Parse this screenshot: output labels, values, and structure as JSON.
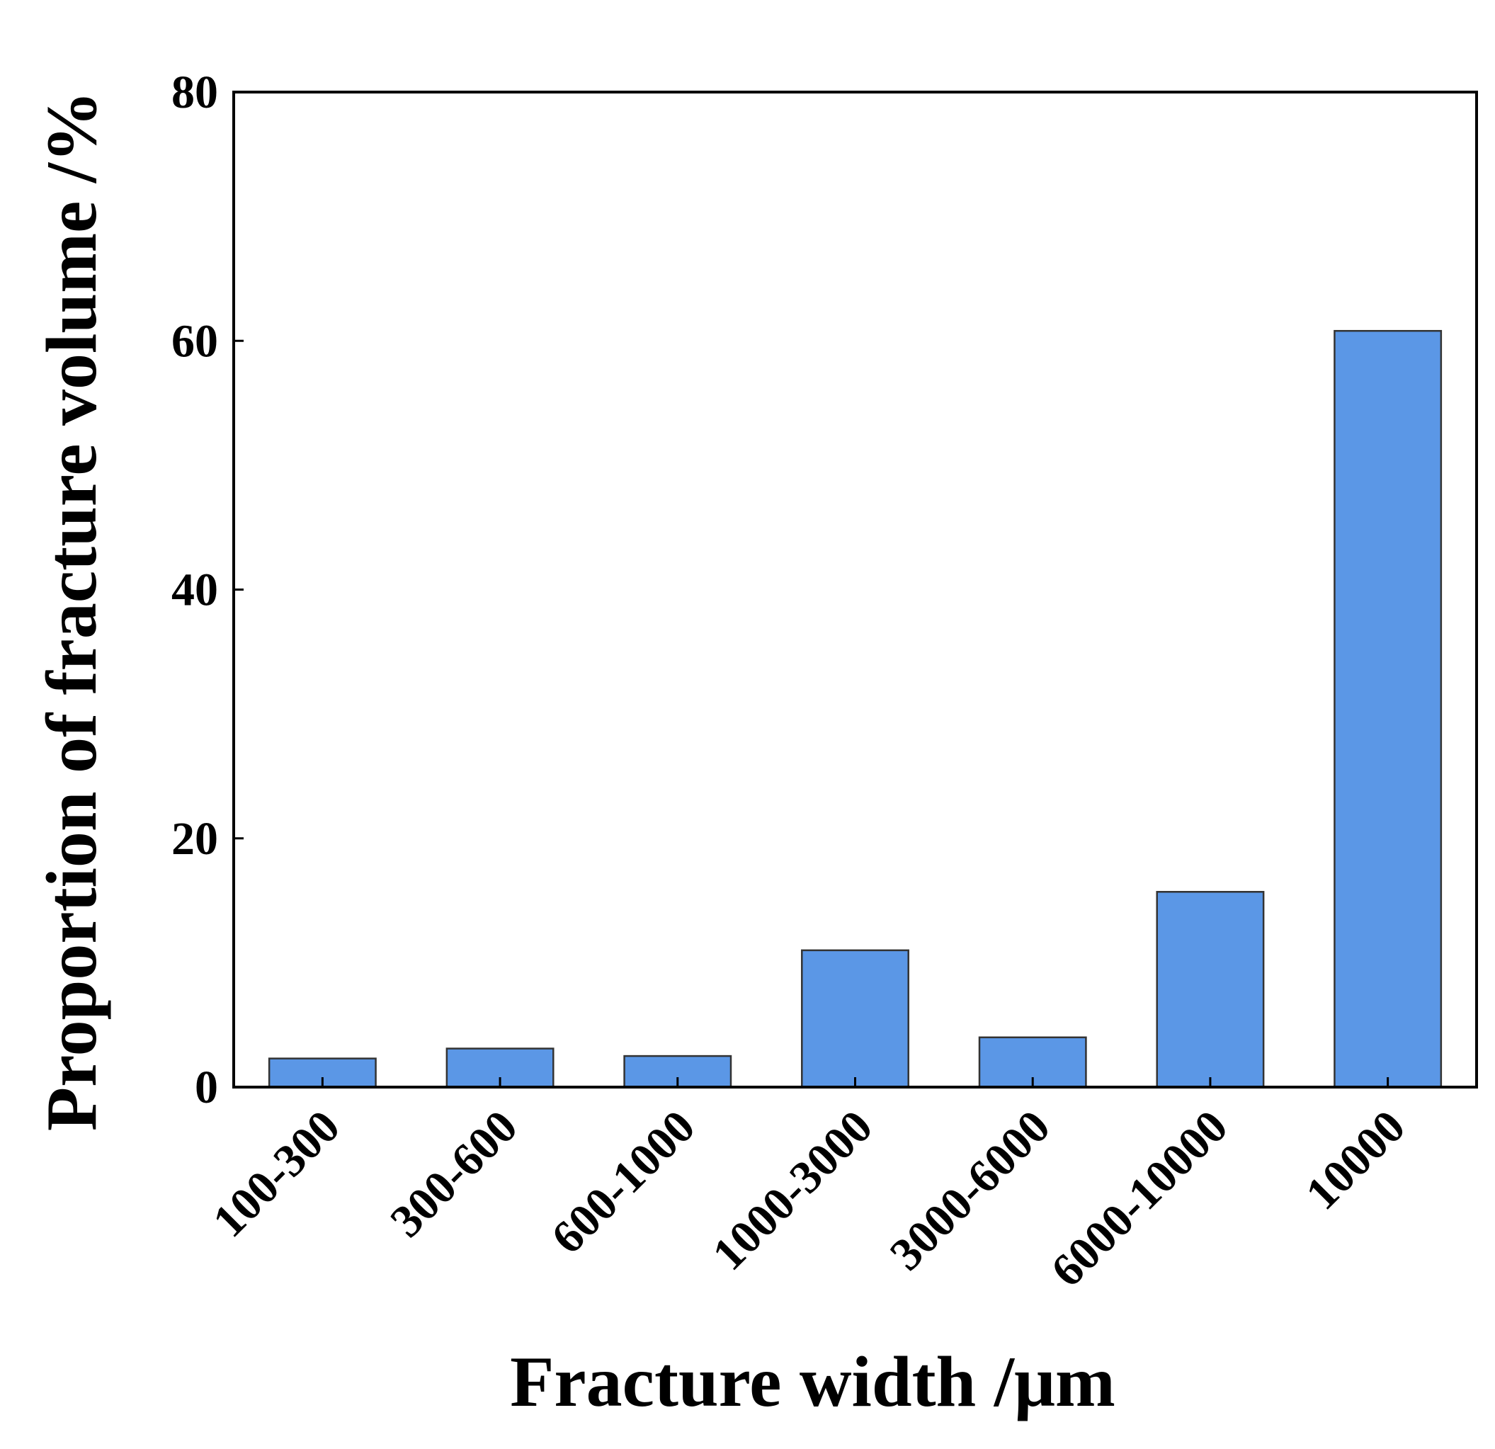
{
  "chart_data": {
    "type": "bar",
    "categories": [
      "100-300",
      "300-600",
      "600-1000",
      "1000-3000",
      "3000-6000",
      "6000-10000",
      "10000"
    ],
    "values": [
      2.3,
      3.1,
      2.5,
      11.0,
      4.0,
      15.7,
      60.8
    ],
    "title": "",
    "xlabel": "Fracture width /μm",
    "ylabel": "Proportion of fracture volume /%",
    "ylim": [
      0,
      80
    ],
    "yticks": [
      0,
      20,
      40,
      60,
      80
    ],
    "grid": false,
    "legend": "none",
    "bar_color": "#5b97e6",
    "bar_edge_color": "#333333",
    "frame": "full box"
  }
}
